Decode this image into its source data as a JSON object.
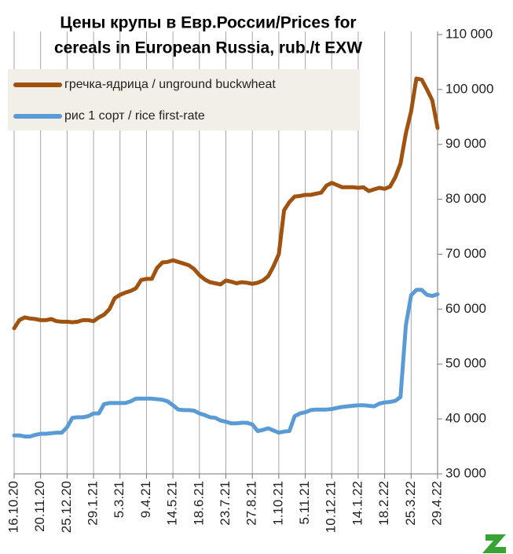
{
  "chart_data": {
    "type": "line",
    "title": [
      "Цены крупы в Евр.России/Prices for",
      "cereals in European Russia, rub./t EXW"
    ],
    "categories": [
      "16.10.20",
      null,
      null,
      null,
      null,
      "20.11.20",
      null,
      null,
      null,
      null,
      "25.12.20",
      null,
      null,
      null,
      null,
      "29.1.21",
      null,
      null,
      null,
      null,
      "5.3.21",
      null,
      null,
      null,
      null,
      "9.4.21",
      null,
      null,
      null,
      null,
      "14.5.21",
      null,
      null,
      null,
      null,
      "18.6.21",
      null,
      null,
      null,
      null,
      "23.7.21",
      null,
      null,
      null,
      null,
      "27.8.21",
      null,
      null,
      null,
      null,
      "1.10.21",
      null,
      null,
      null,
      null,
      "5.11.21",
      null,
      null,
      null,
      null,
      "10.12.21",
      null,
      null,
      null,
      null,
      "14.1.22",
      null,
      null,
      null,
      null,
      "18.2.22",
      null,
      null,
      null,
      null,
      "25.3.22",
      null,
      null,
      null,
      null,
      "29.4.22"
    ],
    "series": [
      {
        "name": "гречка-ядрица / unground buckwheat",
        "color": "#a0520f",
        "values": [
          56500,
          58000,
          58500,
          58300,
          58200,
          58000,
          58000,
          58200,
          57800,
          57700,
          57700,
          57600,
          57700,
          58000,
          58000,
          57800,
          58500,
          59000,
          60000,
          62000,
          62600,
          63000,
          63300,
          63800,
          65300,
          65500,
          65500,
          67500,
          68500,
          68600,
          68900,
          68600,
          68300,
          68000,
          67300,
          66200,
          65400,
          64900,
          64700,
          64500,
          65200,
          65000,
          64700,
          64900,
          64800,
          64600,
          64800,
          65200,
          66000,
          67800,
          70000,
          78000,
          79500,
          80500,
          80600,
          80800,
          80800,
          81000,
          81200,
          82500,
          83000,
          82600,
          82200,
          82200,
          82200,
          82100,
          82200,
          81500,
          81800,
          82100,
          81900,
          82300,
          84000,
          86500,
          92000,
          96000,
          102000,
          101800,
          100000,
          98000,
          93000
        ]
      },
      {
        "name": "рис 1 сорт / rice first-rate",
        "color": "#5b9bd5",
        "values": [
          37000,
          37000,
          36800,
          36800,
          37100,
          37300,
          37300,
          37400,
          37500,
          37500,
          38500,
          40200,
          40300,
          40300,
          40500,
          41000,
          41000,
          42700,
          42900,
          42900,
          42900,
          42900,
          43200,
          43700,
          43700,
          43700,
          43700,
          43600,
          43500,
          43200,
          42500,
          41700,
          41600,
          41600,
          41500,
          41000,
          40700,
          40300,
          40200,
          39700,
          39500,
          39200,
          39200,
          39300,
          39300,
          39000,
          37800,
          38000,
          38300,
          37900,
          37500,
          37700,
          37800,
          40500,
          41000,
          41200,
          41600,
          41700,
          41700,
          41700,
          41800,
          42000,
          42200,
          42300,
          42400,
          42500,
          42500,
          42400,
          42300,
          42800,
          43000,
          43100,
          43300,
          44000,
          57000,
          62500,
          63500,
          63500,
          62600,
          62400,
          62700
        ]
      }
    ],
    "ylim": [
      30000,
      110000
    ],
    "yticks": [
      {
        "value": 30000,
        "label": "30 000"
      },
      {
        "value": 40000,
        "label": "40 000"
      },
      {
        "value": 50000,
        "label": "50 000"
      },
      {
        "value": 60000,
        "label": "60 000"
      },
      {
        "value": 70000,
        "label": "70 000"
      },
      {
        "value": 80000,
        "label": "80 000"
      },
      {
        "value": 90000,
        "label": "90 000"
      },
      {
        "value": 100000,
        "label": "100 000"
      },
      {
        "value": 110000,
        "label": "110 000"
      }
    ],
    "grid": "x",
    "legend": "upper left"
  }
}
